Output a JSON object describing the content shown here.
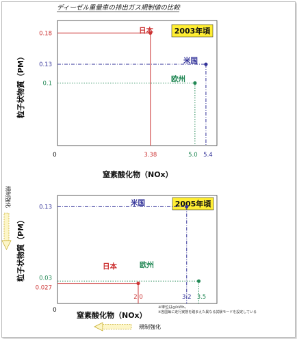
{
  "page_title": "ディーゼル重量車の排出ガス規制値の比較",
  "colors": {
    "japan": "#cc3333",
    "us": "#333399",
    "eu": "#228855",
    "badge": "#ffee33",
    "axis": "#222222"
  },
  "labels": {
    "strengthen_vertical": "規制強化",
    "strengthen_horizontal": "規制強化",
    "note_1": "※単位はg/kWh。",
    "note_2": "※各国毎に走行実態を踏まえた異なる試験モードを設定している"
  },
  "chart_data": [
    {
      "type": "scatter",
      "badge": "2003年頃",
      "xlabel": "窒素酸化物（NOx）",
      "ylabel": "粒子状物質（PM）",
      "origin_label": "0",
      "xlim": [
        0,
        5.8
      ],
      "ylim": [
        0,
        0.2
      ],
      "points": [
        {
          "name": "日本",
          "x": 3.38,
          "y": 0.18,
          "x_label": "3.38",
          "y_label": "0.18",
          "line": "solid"
        },
        {
          "name": "米国",
          "x": 5.4,
          "y": 0.13,
          "x_label": "5.4",
          "y_label": "0.13",
          "line": "dashdot"
        },
        {
          "name": "欧州",
          "x": 5.0,
          "y": 0.1,
          "x_label": "5.0",
          "y_label": "0.1",
          "line": "dotted"
        }
      ]
    },
    {
      "type": "scatter",
      "badge": "2005年頃",
      "xlabel": "窒素酸化物（NOx）",
      "ylabel": "粒子状物質（PM）",
      "origin_label": "0",
      "xlim": [
        0,
        3.95
      ],
      "ylim": [
        0,
        0.145
      ],
      "points": [
        {
          "name": "米国",
          "x": 3.2,
          "y": 0.13,
          "x_label": "3.2",
          "y_label": "0.13",
          "line": "dashdot"
        },
        {
          "name": "欧州",
          "x": 3.5,
          "y": 0.03,
          "x_label": "3.5",
          "y_label": "0.03",
          "line": "dotted"
        },
        {
          "name": "日本",
          "x": 2.0,
          "y": 0.027,
          "x_label": "2.0",
          "y_label": "0.027",
          "line": "solid"
        }
      ]
    }
  ]
}
